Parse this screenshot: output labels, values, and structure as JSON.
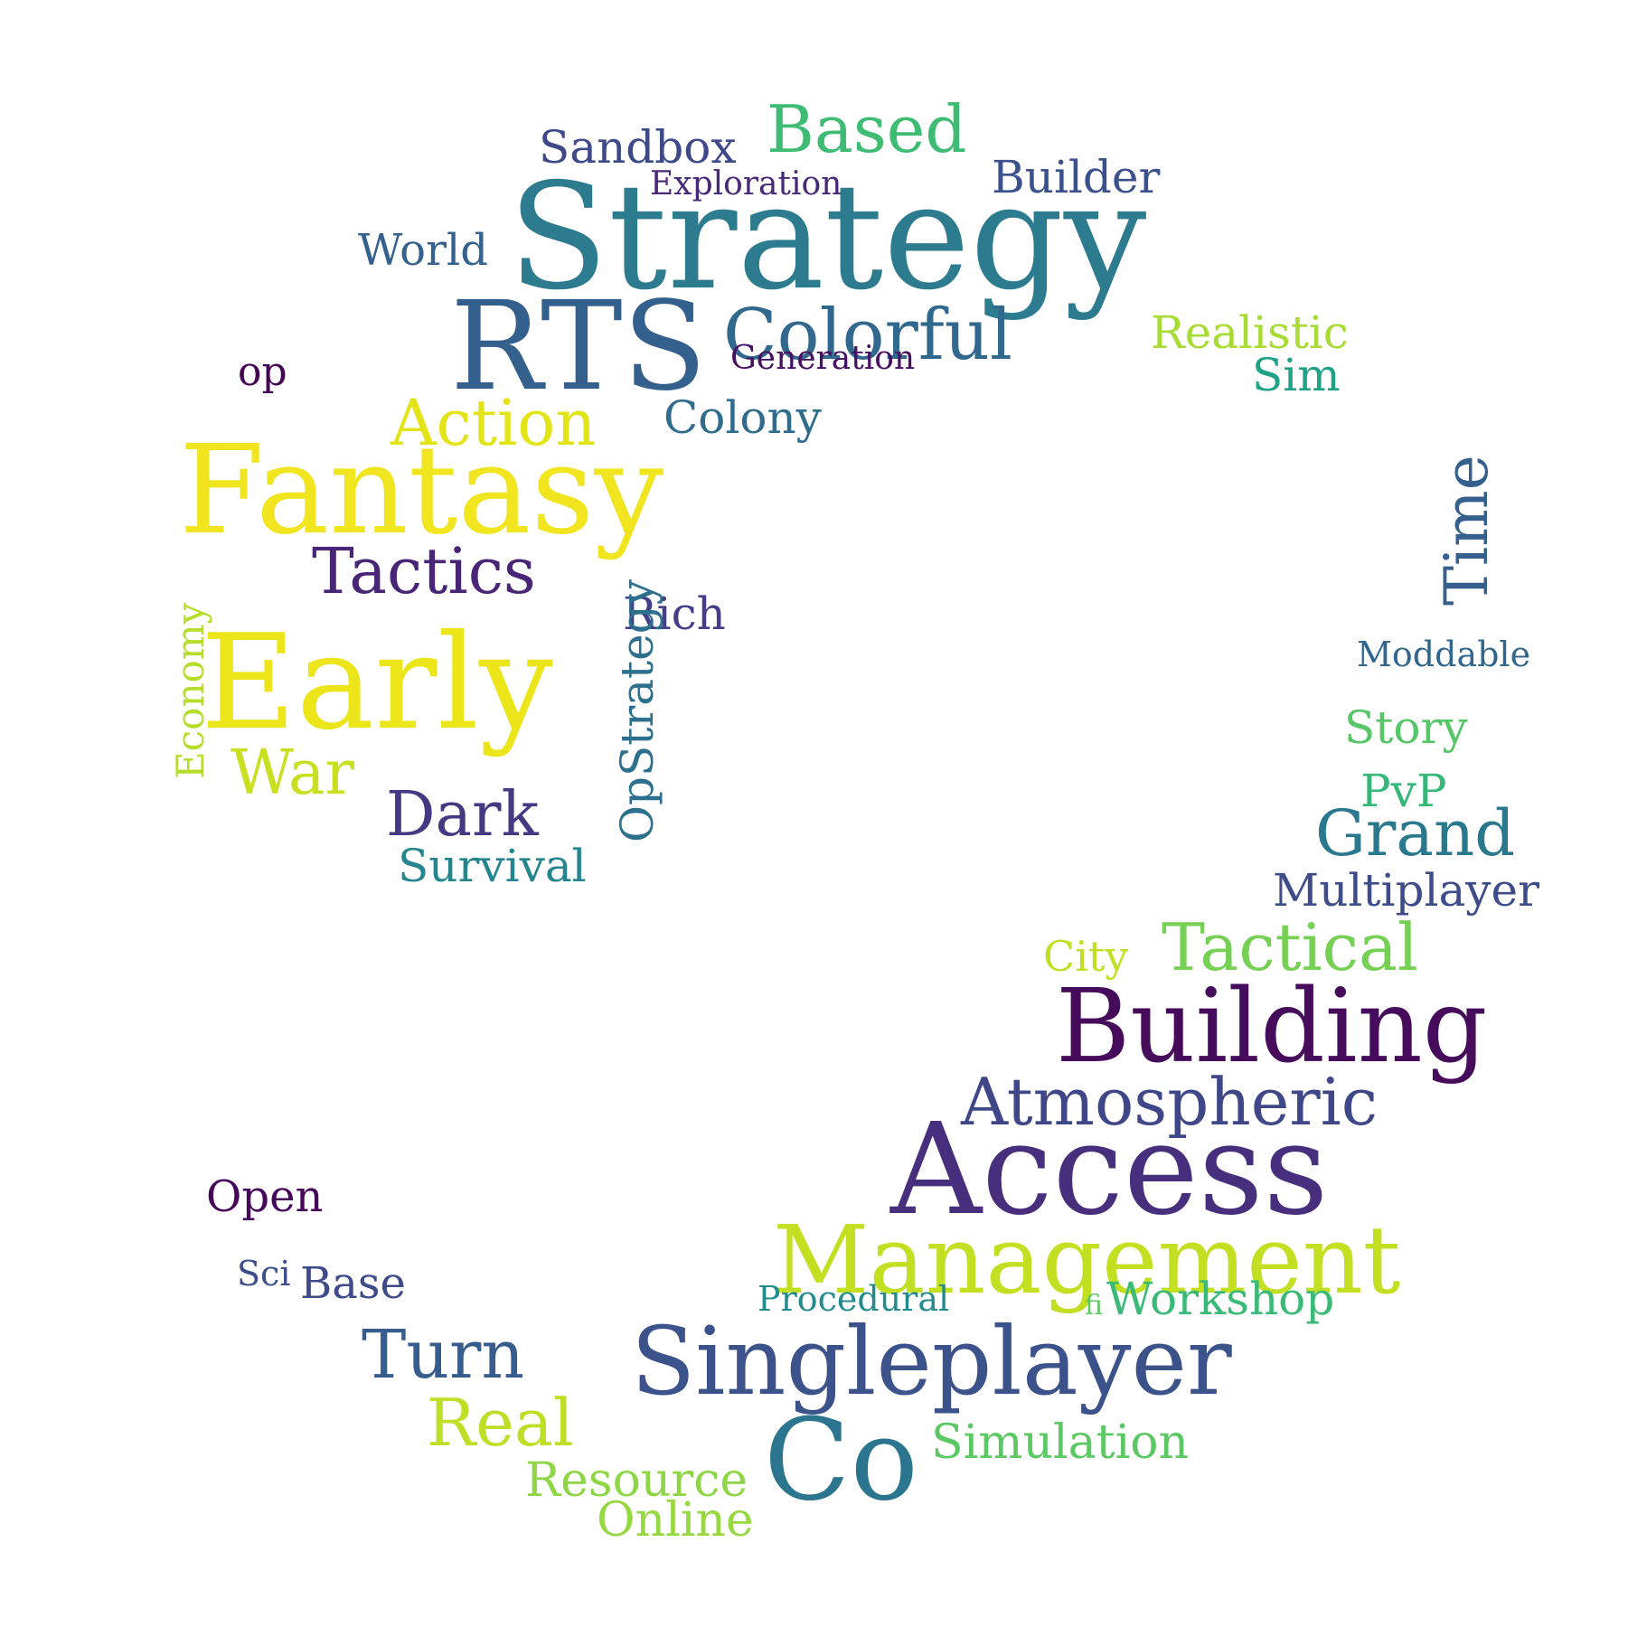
{
  "words": [
    {
      "text": "Strategy",
      "color": "#2c7b8e"
    },
    {
      "text": "RTS",
      "color": "#33608d"
    },
    {
      "text": "Fantasy",
      "color": "#f0e51f"
    },
    {
      "text": "Early",
      "color": "#ebe51a"
    },
    {
      "text": "Access",
      "color": "#472f7d"
    },
    {
      "text": "Building",
      "color": "#460c5b"
    },
    {
      "text": "Management",
      "color": "#c2df22"
    },
    {
      "text": "Singleplayer",
      "color": "#3b528b"
    },
    {
      "text": "Co",
      "color": "#2b768e"
    },
    {
      "text": "Colorful",
      "color": "#31688e"
    },
    {
      "text": "Based",
      "color": "#3fbc73"
    },
    {
      "text": "Tactics",
      "color": "#482576"
    },
    {
      "text": "Action",
      "color": "#e2e418"
    },
    {
      "text": "Atmospheric",
      "color": "#3f4788"
    },
    {
      "text": "Tactical",
      "color": "#75d054"
    },
    {
      "text": "Grand",
      "color": "#2a788e"
    },
    {
      "text": "War",
      "color": "#c8e020"
    },
    {
      "text": "Dark",
      "color": "#443a83"
    },
    {
      "text": "Turn",
      "color": "#365d8d"
    },
    {
      "text": "Real",
      "color": "#bddf26"
    },
    {
      "text": "Sandbox",
      "color": "#3e4989"
    },
    {
      "text": "Builder",
      "color": "#3b518b"
    },
    {
      "text": "World",
      "color": "#34618d"
    },
    {
      "text": "Exploration",
      "color": "#482878"
    },
    {
      "text": "Generation",
      "color": "#471063"
    },
    {
      "text": "Realistic",
      "color": "#a8db34"
    },
    {
      "text": "Sim",
      "color": "#1fa287"
    },
    {
      "text": "op",
      "color": "#440154"
    },
    {
      "text": "Colony",
      "color": "#2f6c8e"
    },
    {
      "text": "Rich",
      "color": "#433e85"
    },
    {
      "text": "Survival",
      "color": "#25858e"
    },
    {
      "text": "Moddable",
      "color": "#31678e"
    },
    {
      "text": "Story",
      "color": "#56c667"
    },
    {
      "text": "PvP",
      "color": "#35b779"
    },
    {
      "text": "Multiplayer",
      "color": "#3e4c8a"
    },
    {
      "text": "City",
      "color": "#c0df25"
    },
    {
      "text": "Open",
      "color": "#450559"
    },
    {
      "text": "Sci",
      "color": "#3d4e8a"
    },
    {
      "text": "Base",
      "color": "#3e4a89"
    },
    {
      "text": "Procedural",
      "color": "#228c8d"
    },
    {
      "text": "fi",
      "color": "#5ec962"
    },
    {
      "text": "Workshop",
      "color": "#3aba76"
    },
    {
      "text": "Simulation",
      "color": "#5cc863"
    },
    {
      "text": "Resource",
      "color": "#8ed645"
    },
    {
      "text": "Online",
      "color": "#95d840"
    },
    {
      "text": "Time",
      "color": "#355f8d"
    },
    {
      "text": "OpStrategy",
      "color": "#2d708e"
    },
    {
      "text": "Economy",
      "color": "#b5de2b"
    }
  ]
}
